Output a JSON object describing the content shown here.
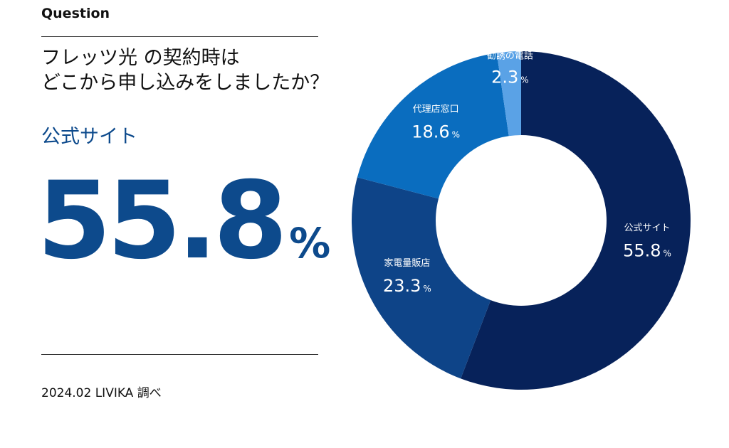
{
  "header": {
    "question_label": "Question"
  },
  "question": {
    "line1": "フレッツ光 の契約時は",
    "line2": "どこから申し込みをしましたか？"
  },
  "highlight": {
    "label": "公式サイト",
    "value": "55.8",
    "unit": "%"
  },
  "source": "2024.02 LIVIKA 調べ",
  "colors": {
    "accent": "#0d4a8c",
    "slices": [
      "#07225a",
      "#0e4488",
      "#0a6dbf",
      "#5aa2e6"
    ]
  },
  "chart_data": {
    "type": "pie",
    "style": "donut",
    "unit": "%",
    "slices": [
      {
        "label": "公式サイト",
        "value": 55.8
      },
      {
        "label": "家電量販店",
        "value": 23.3
      },
      {
        "label": "代理店窓口",
        "value": 18.6
      },
      {
        "label": "勧誘の電話",
        "value": 2.3
      }
    ],
    "legend": "none"
  }
}
